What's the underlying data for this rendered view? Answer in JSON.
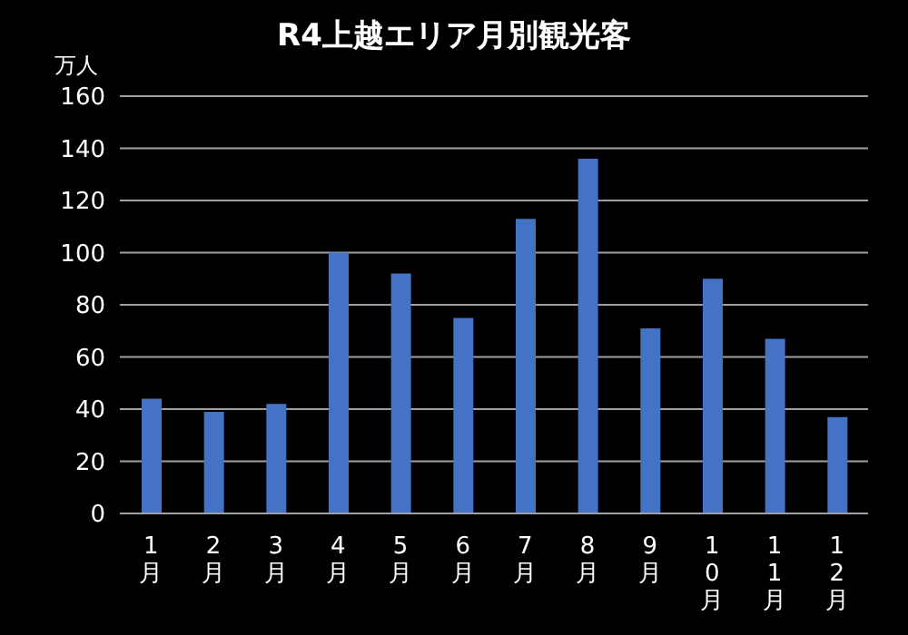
{
  "chart_data": {
    "type": "bar",
    "title": "R4上越エリア月別観光客",
    "ylabel": "万人",
    "categories": [
      "1月",
      "2月",
      "3月",
      "4月",
      "5月",
      "6月",
      "7月",
      "8月",
      "9月",
      "10月",
      "11月",
      "12月"
    ],
    "values": [
      44,
      39,
      42,
      100,
      92,
      75,
      113,
      136,
      71,
      90,
      67,
      37
    ],
    "color": "#4472c4",
    "ylim": [
      0,
      160
    ],
    "yticks": [
      0,
      20,
      40,
      60,
      80,
      100,
      120,
      140,
      160
    ],
    "grid": "y"
  }
}
